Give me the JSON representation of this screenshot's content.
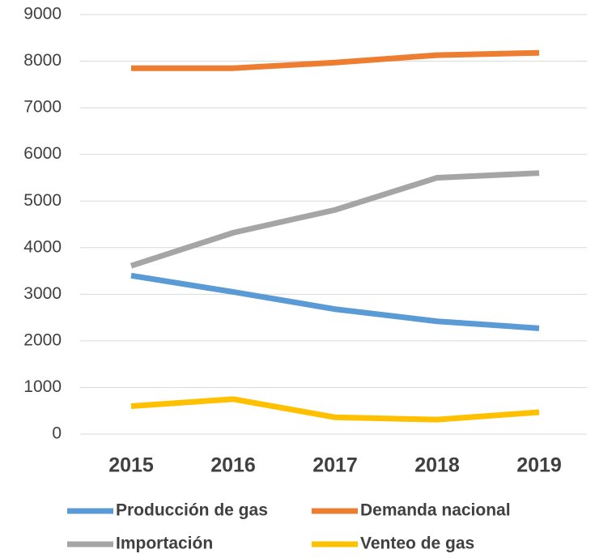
{
  "chart_data": {
    "type": "line",
    "categories": [
      "2015",
      "2016",
      "2017",
      "2018",
      "2019"
    ],
    "series": [
      {
        "name": "Producción de gas",
        "color": "#5b9bd5",
        "values": [
          3400,
          3050,
          2680,
          2420,
          2270
        ]
      },
      {
        "name": "Demanda nacional",
        "color": "#ed7d31",
        "values": [
          7850,
          7850,
          7970,
          8130,
          8180
        ]
      },
      {
        "name": "Importación",
        "color": "#a5a5a5",
        "values": [
          3610,
          4320,
          4810,
          5500,
          5600
        ]
      },
      {
        "name": "Venteo de gas",
        "color": "#ffc000",
        "values": [
          600,
          750,
          360,
          310,
          470
        ]
      }
    ],
    "ylim": [
      0,
      9000
    ],
    "yticks": [
      0,
      1000,
      2000,
      3000,
      4000,
      5000,
      6000,
      7000,
      8000,
      9000
    ],
    "grid": true,
    "legend": "bottom"
  }
}
